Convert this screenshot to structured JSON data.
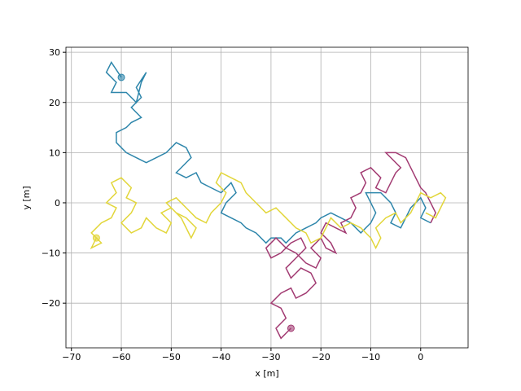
{
  "chart_data": {
    "type": "line",
    "xlabel": "x [m]",
    "ylabel": "y [m]",
    "grid": true,
    "xlim": [
      -71.1,
      9.5
    ],
    "ylim": [
      -28.9,
      31
    ],
    "xticks": [
      {
        "value": -70,
        "label": "−70"
      },
      {
        "value": -60,
        "label": "−60"
      },
      {
        "value": -50,
        "label": "−50"
      },
      {
        "value": -40,
        "label": "−40"
      },
      {
        "value": -30,
        "label": "−30"
      },
      {
        "value": -20,
        "label": "−20"
      },
      {
        "value": -10,
        "label": "−10"
      },
      0
    ],
    "yticks": [
      {
        "value": -20,
        "label": "−20"
      },
      {
        "value": -10,
        "label": "−10"
      },
      0,
      10,
      20,
      30
    ],
    "series": [
      {
        "color": "#2e86ab",
        "x": [
          -60,
          -62,
          -63,
          -61,
          -62,
          -59,
          -57,
          -56,
          -55,
          -57,
          -56,
          -58,
          -56,
          -58,
          -59,
          -61,
          -61,
          -59,
          -57,
          -55,
          -53,
          -51,
          -49,
          -47,
          -46,
          -48,
          -49,
          -47,
          -45,
          -44,
          -42,
          -40,
          -38,
          -37,
          -39,
          -40,
          -38,
          -36,
          -35,
          -33,
          -31,
          -30,
          -28,
          -27,
          -25,
          -23,
          -21,
          -20,
          -18,
          -16,
          -14,
          -12,
          -10,
          -9,
          -10,
          -11,
          -8,
          -6,
          -5,
          -6,
          -4,
          -3,
          -2,
          0,
          1,
          0,
          2
        ],
        "y": [
          25,
          28,
          26,
          24,
          22,
          22,
          20,
          24,
          26,
          23,
          21,
          19,
          17,
          16,
          15,
          14,
          12,
          10,
          9,
          8,
          9,
          10,
          12,
          11,
          9,
          7,
          6,
          5,
          6,
          4,
          3,
          2,
          4,
          2,
          0,
          -2,
          -3,
          -4,
          -5,
          -6,
          -8,
          -7,
          -7,
          -8,
          -6,
          -5,
          -4,
          -3,
          -2,
          -3,
          -4,
          -6,
          -4,
          -2,
          0,
          2,
          2,
          0,
          -2,
          -4,
          -5,
          -3,
          -1,
          1,
          -1,
          -3,
          -4
        ]
      },
      {
        "color": "#a23b72",
        "x": [
          -26,
          -28,
          -29,
          -27,
          -28,
          -30,
          -28,
          -26,
          -25,
          -23,
          -21,
          -22,
          -24,
          -26,
          -27,
          -25,
          -23,
          -24,
          -26,
          -28,
          -30,
          -31,
          -29,
          -27,
          -25,
          -23,
          -21,
          -20,
          -22,
          -20,
          -19,
          -17,
          -18,
          -20,
          -19,
          -17,
          -15,
          -16,
          -14,
          -13,
          -14,
          -12,
          -11,
          -12,
          -10,
          -8,
          -9,
          -7,
          -6,
          -5,
          -4,
          -6,
          -7,
          -5,
          -3,
          -2,
          -1,
          0,
          1,
          2,
          3,
          2
        ],
        "y": [
          -25,
          -27,
          -25,
          -23,
          -21,
          -20,
          -18,
          -17,
          -19,
          -18,
          -16,
          -14,
          -13,
          -15,
          -13,
          -11,
          -9,
          -7,
          -8,
          -10,
          -11,
          -9,
          -7,
          -9,
          -10,
          -12,
          -13,
          -11,
          -9,
          -7,
          -9,
          -10,
          -8,
          -6,
          -4,
          -5,
          -6,
          -4,
          -3,
          -1,
          1,
          2,
          4,
          6,
          7,
          5,
          3,
          2,
          4,
          6,
          7,
          9,
          10,
          10,
          9,
          7,
          5,
          3,
          2,
          0,
          -2,
          -4
        ]
      },
      {
        "color": "#e2d63a",
        "x": [
          -65,
          -66,
          -64,
          -66,
          -64,
          -62,
          -61,
          -63,
          -61,
          -62,
          -60,
          -58,
          -59,
          -57,
          -58,
          -60,
          -58,
          -56,
          -55,
          -53,
          -51,
          -50,
          -52,
          -50,
          -48,
          -47,
          -46,
          -45,
          -47,
          -49,
          -51,
          -49,
          -47,
          -45,
          -43,
          -42,
          -40,
          -39,
          -41,
          -40,
          -38,
          -36,
          -35,
          -33,
          -31,
          -29,
          -27,
          -25,
          -23,
          -22,
          -20,
          -19,
          -18,
          -16,
          -14,
          -12,
          -10,
          -9,
          -8,
          -9,
          -7,
          -5,
          -4,
          -2,
          -1,
          0,
          2,
          4,
          5,
          4,
          3,
          1
        ],
        "y": [
          -7,
          -9,
          -8,
          -6,
          -4,
          -3,
          -1,
          0,
          2,
          4,
          5,
          3,
          1,
          0,
          -2,
          -4,
          -6,
          -5,
          -3,
          -5,
          -6,
          -4,
          -2,
          -1,
          -3,
          -5,
          -7,
          -5,
          -3,
          -2,
          0,
          1,
          -1,
          -3,
          -4,
          -2,
          0,
          2,
          4,
          6,
          5,
          4,
          2,
          0,
          -2,
          -1,
          -3,
          -5,
          -6,
          -8,
          -7,
          -5,
          -3,
          -5,
          -4,
          -5,
          -7,
          -9,
          -7,
          -5,
          -3,
          -2,
          -4,
          -2,
          0,
          2,
          1,
          2,
          1,
          -1,
          -3,
          -2
        ]
      }
    ]
  }
}
